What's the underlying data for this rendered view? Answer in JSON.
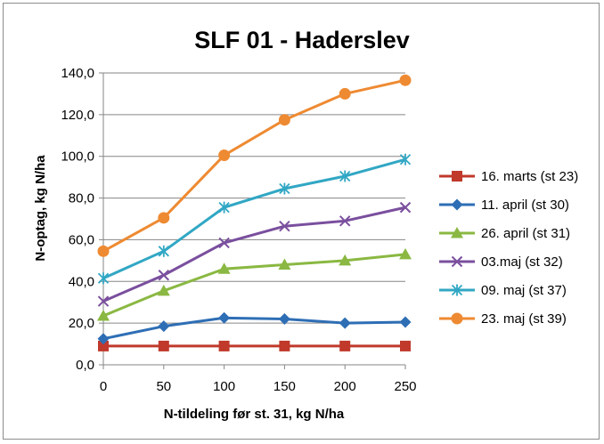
{
  "chart_data": {
    "type": "line",
    "title": "SLF 01 - Haderslev",
    "xlabel": "N-tildeling før st. 31, kg N/ha",
    "ylabel": "N-optag, kg N/ha",
    "x": [
      0,
      50,
      100,
      150,
      200,
      250
    ],
    "x_tick_labels": [
      "0",
      "50",
      "100",
      "150",
      "200",
      "250"
    ],
    "y_tick_labels": [
      "0,0",
      "20,0",
      "40,0",
      "60,0",
      "80,0",
      "100,0",
      "120,0",
      "140,0"
    ],
    "ylim": [
      0,
      140
    ],
    "y_ticks": [
      0,
      20,
      40,
      60,
      80,
      100,
      120,
      140
    ],
    "grid": "horizontal",
    "legend_position": "right",
    "series": [
      {
        "name": "16. marts (st 23)",
        "color": "#c0392b",
        "marker": "square",
        "values": [
          9,
          9,
          9,
          9,
          9,
          9
        ]
      },
      {
        "name": "11. april (st 30)",
        "color": "#2e6eb5",
        "marker": "diamond",
        "values": [
          12.5,
          18.5,
          22.5,
          22,
          20,
          20.5
        ]
      },
      {
        "name": "26. april (st 31)",
        "color": "#8ab842",
        "marker": "triangle",
        "values": [
          23.5,
          35.5,
          46,
          48,
          50,
          53
        ]
      },
      {
        "name": "03.maj (st 32)",
        "color": "#7a4f9e",
        "marker": "x",
        "values": [
          30.5,
          43,
          58.5,
          66.5,
          69,
          75.5
        ]
      },
      {
        "name": "09. maj (st 37)",
        "color": "#31a7c4",
        "marker": "asterisk",
        "values": [
          41.5,
          54.5,
          75.5,
          84.5,
          90.5,
          98.5
        ]
      },
      {
        "name": "23. maj (st 39)",
        "color": "#ee8a32",
        "marker": "circle",
        "values": [
          54.5,
          70.5,
          100.5,
          117.5,
          130,
          136.5
        ]
      }
    ]
  }
}
